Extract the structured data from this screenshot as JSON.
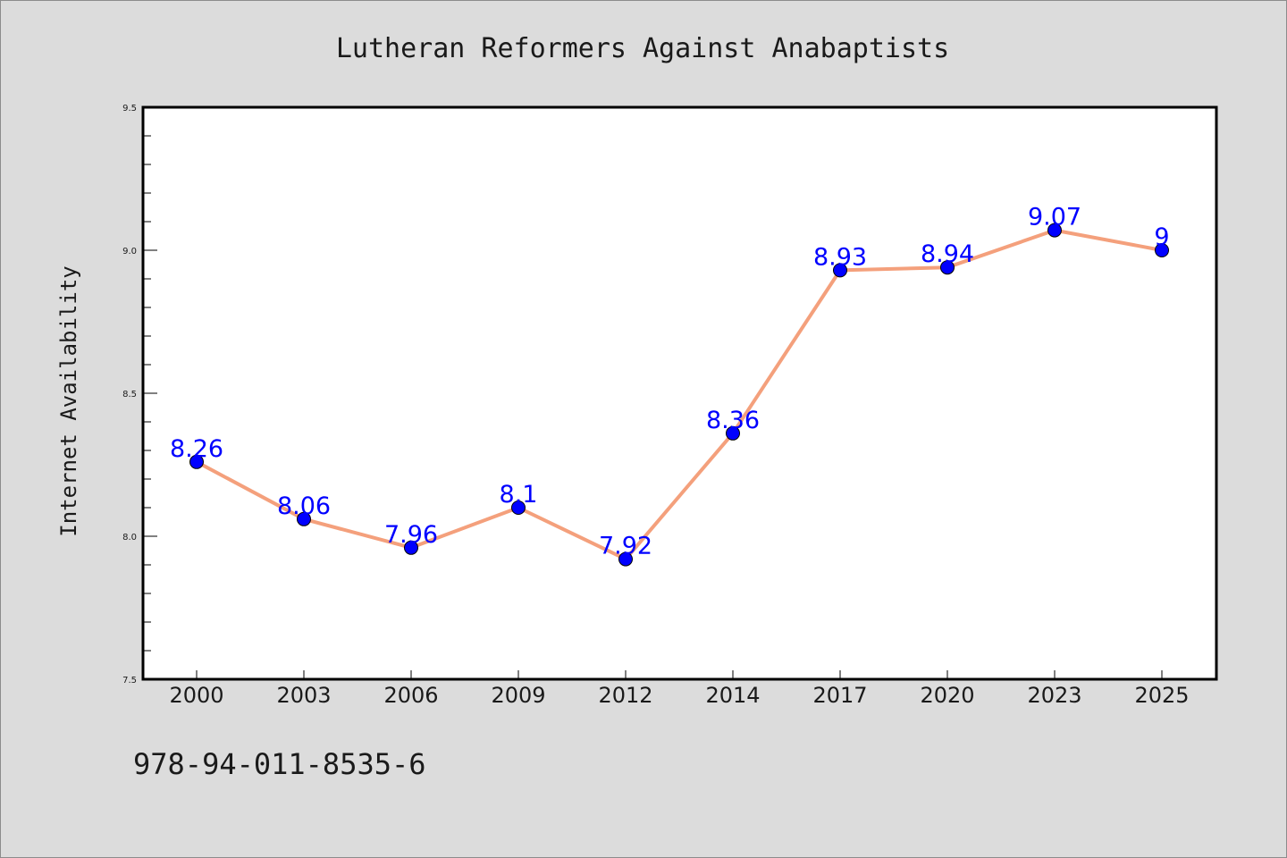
{
  "chart_data": {
    "type": "line",
    "title": "Lutheran Reformers Against Anabaptists",
    "xlabel": "",
    "ylabel": "Internet Availability",
    "categories": [
      "2000",
      "2003",
      "2006",
      "2009",
      "2012",
      "2014",
      "2017",
      "2020",
      "2023",
      "2025"
    ],
    "values": [
      8.26,
      8.06,
      7.96,
      8.1,
      7.92,
      8.36,
      8.93,
      8.94,
      9.07,
      9.0
    ],
    "data_labels": [
      "8.26",
      "8.06",
      "7.96",
      "8.1",
      "7.92",
      "8.36",
      "8.93",
      "8.94",
      "9.07",
      "9"
    ],
    "ylim": [
      7.5,
      9.5
    ],
    "yticks": [
      "7.5",
      "8.0",
      "8.5",
      "9.0",
      "9.5"
    ],
    "grid": false,
    "line_color": "#f4a07c",
    "marker_color": "#0000ff",
    "label_color": "#0000ff",
    "background_color": "#dcdcdc",
    "plot_background": "#ffffff"
  },
  "footer": {
    "isbn": "978-94-011-8535-6"
  }
}
